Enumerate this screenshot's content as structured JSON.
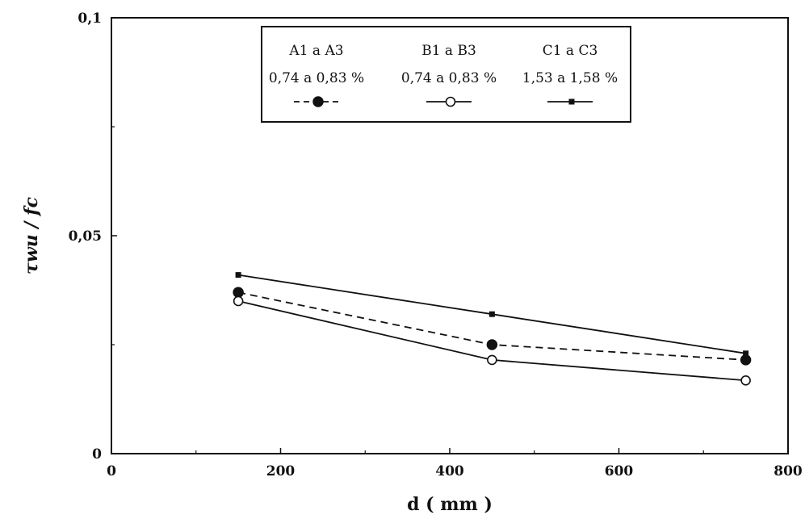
{
  "chart_data": {
    "type": "line",
    "xlabel": "d ( mm )",
    "ylabel": "τwu / fc",
    "xlim": [
      0,
      800
    ],
    "ylim": [
      0,
      0.1
    ],
    "x_ticks": [
      0,
      200,
      400,
      600,
      800
    ],
    "x_tick_labels": [
      "0",
      "200",
      "400",
      "600",
      "800"
    ],
    "y_ticks": [
      0,
      0.05,
      0.1
    ],
    "y_tick_labels": [
      "0",
      "0,05",
      "0,1"
    ],
    "grid": false,
    "legend_position": "top-center",
    "series": [
      {
        "name": "A1 a A3",
        "subtitle": "0,74 a 0,83 %",
        "marker": "filled-circle",
        "line_style": "dashed",
        "color": "#111111",
        "x": [
          150,
          450,
          750
        ],
        "y": [
          0.037,
          0.025,
          0.0215
        ]
      },
      {
        "name": "B1 a B3",
        "subtitle": "0,74 a 0,83 %",
        "marker": "open-circle",
        "line_style": "solid",
        "color": "#111111",
        "x": [
          150,
          450,
          750
        ],
        "y": [
          0.035,
          0.0215,
          0.0168
        ]
      },
      {
        "name": "C1 a C3",
        "subtitle": "1,53 a 1,58 %",
        "marker": "small-square",
        "line_style": "solid",
        "color": "#111111",
        "x": [
          150,
          450,
          750
        ],
        "y": [
          0.041,
          0.032,
          0.023
        ]
      }
    ]
  }
}
